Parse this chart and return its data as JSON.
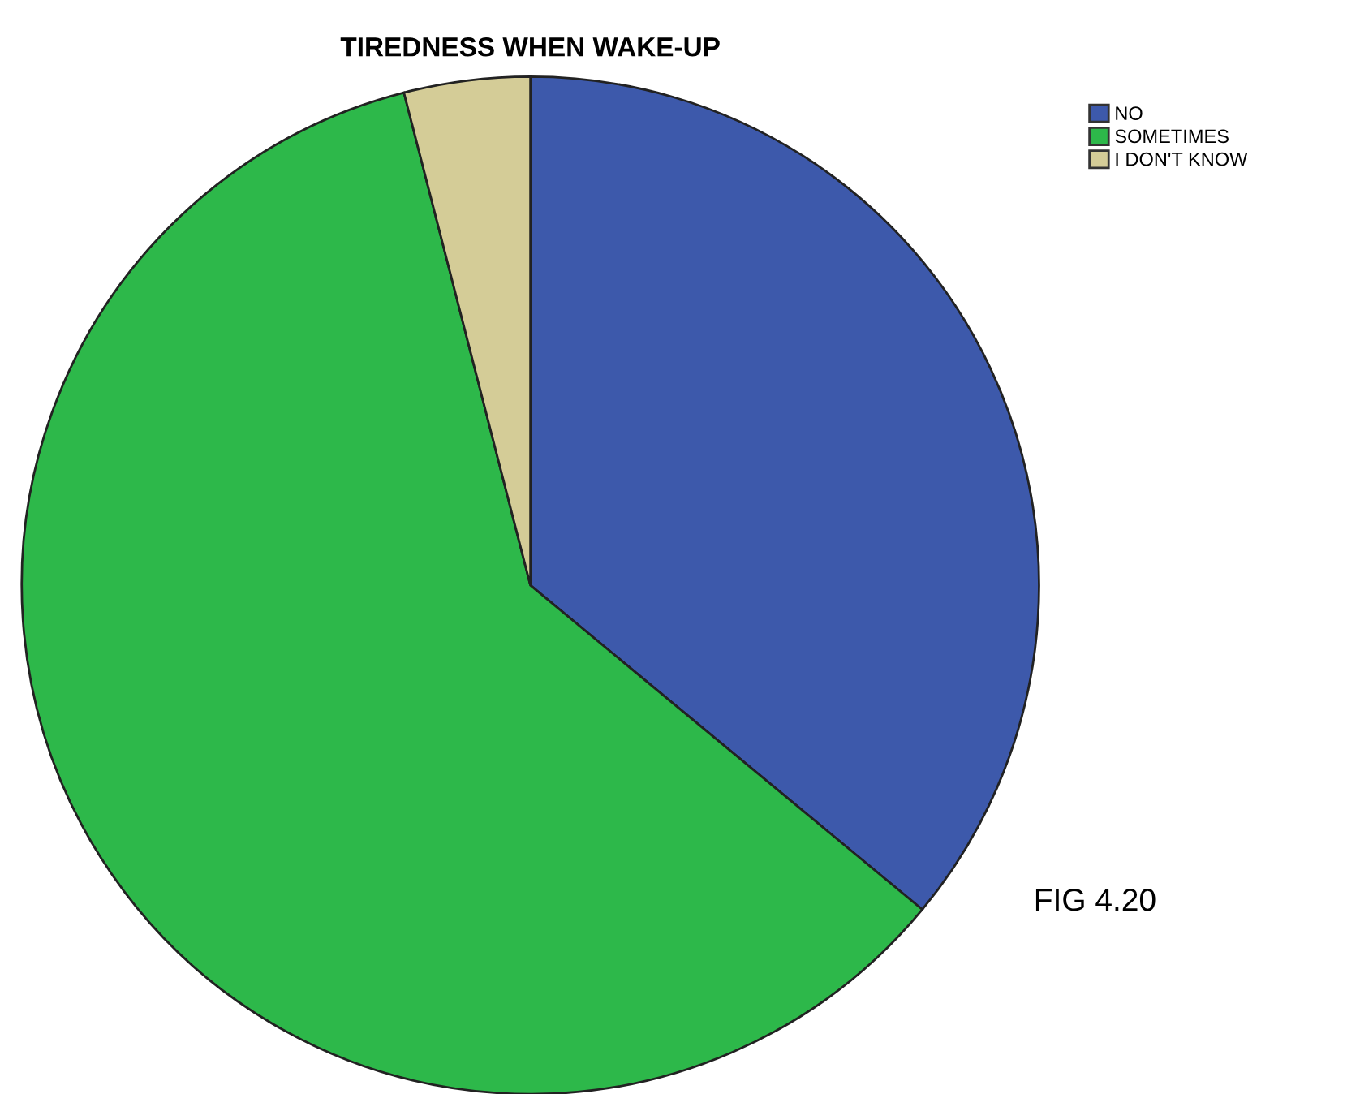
{
  "chart_data": {
    "type": "pie",
    "title": "TIREDNESS WHEN WAKE-UP",
    "categories": [
      "NO",
      "SOMETIMES",
      "I DON'T KNOW"
    ],
    "values": [
      36,
      60,
      4
    ],
    "colors": [
      "#3d59ab",
      "#2db84a",
      "#d4cc97"
    ],
    "legend": "top right",
    "annotations": [
      "FIG 4.20"
    ]
  }
}
